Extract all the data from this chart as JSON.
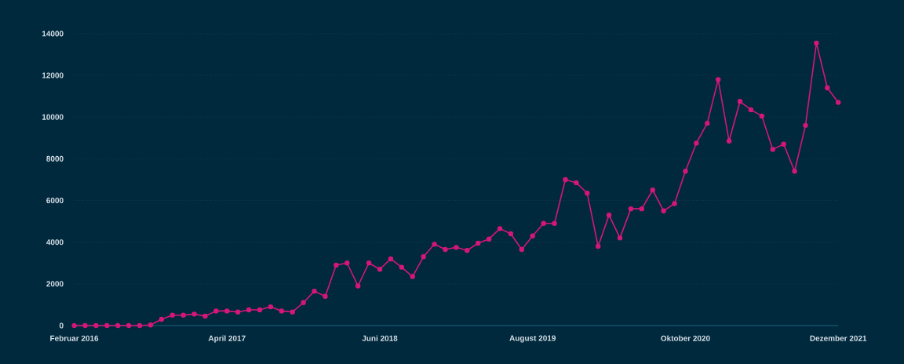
{
  "chart_data": {
    "type": "line",
    "x": [
      "2016-02",
      "2016-03",
      "2016-04",
      "2016-05",
      "2016-06",
      "2016-07",
      "2016-08",
      "2016-09",
      "2016-10",
      "2016-11",
      "2016-12",
      "2017-01",
      "2017-02",
      "2017-03",
      "2017-04",
      "2017-05",
      "2017-06",
      "2017-07",
      "2017-08",
      "2017-09",
      "2017-10",
      "2017-11",
      "2017-12",
      "2018-01",
      "2018-02",
      "2018-03",
      "2018-04",
      "2018-05",
      "2018-06",
      "2018-07",
      "2018-08",
      "2018-09",
      "2018-10",
      "2018-11",
      "2018-12",
      "2019-01",
      "2019-02",
      "2019-03",
      "2019-04",
      "2019-05",
      "2019-06",
      "2019-07",
      "2019-08",
      "2019-09",
      "2019-10",
      "2019-11",
      "2019-12",
      "2020-01",
      "2020-02",
      "2020-03",
      "2020-04",
      "2020-05",
      "2020-06",
      "2020-07",
      "2020-08",
      "2020-09",
      "2020-10",
      "2020-11",
      "2020-12",
      "2021-01",
      "2021-02",
      "2021-03",
      "2021-04",
      "2021-05",
      "2021-06",
      "2021-07",
      "2021-08",
      "2021-09",
      "2021-10",
      "2021-11",
      "2021-12"
    ],
    "series": [
      {
        "color": "#d4177a",
        "values": [
          0,
          0,
          0,
          0,
          0,
          0,
          0,
          30,
          300,
          500,
          500,
          550,
          450,
          700,
          700,
          650,
          750,
          750,
          900,
          700,
          650,
          1100,
          1650,
          1400,
          2900,
          3000,
          1900,
          3000,
          2700,
          3200,
          2800,
          2350,
          3300,
          3900,
          3650,
          3750,
          3600,
          3950,
          4150,
          4650,
          4400,
          3650,
          4300,
          4900,
          4900,
          7000,
          6850,
          6350,
          3800,
          5300,
          4200,
          5600,
          5600,
          6500,
          5500,
          5850,
          7400,
          8750,
          9700,
          11800,
          8850,
          10750,
          10350,
          10050,
          8450,
          8700,
          7400,
          9600,
          13550,
          11400,
          10700
        ]
      }
    ],
    "xlim": [
      "2016-02",
      "2021-12"
    ],
    "xticks": [
      {
        "value": "2016-02",
        "label": "Februar 2016"
      },
      {
        "value": "2017-04",
        "label": "April 2017"
      },
      {
        "value": "2018-06",
        "label": "Juni 2018"
      },
      {
        "value": "2019-08",
        "label": "August 2019"
      },
      {
        "value": "2020-10",
        "label": "Oktober 2020"
      },
      {
        "value": "2021-12",
        "label": "Dezember 2021"
      }
    ],
    "ylim": [
      0,
      14000
    ],
    "yticks": [
      0,
      2000,
      4000,
      6000,
      8000,
      10000,
      12000,
      14000
    ],
    "grid": "y",
    "marker": "circle",
    "line_style": "solid"
  }
}
